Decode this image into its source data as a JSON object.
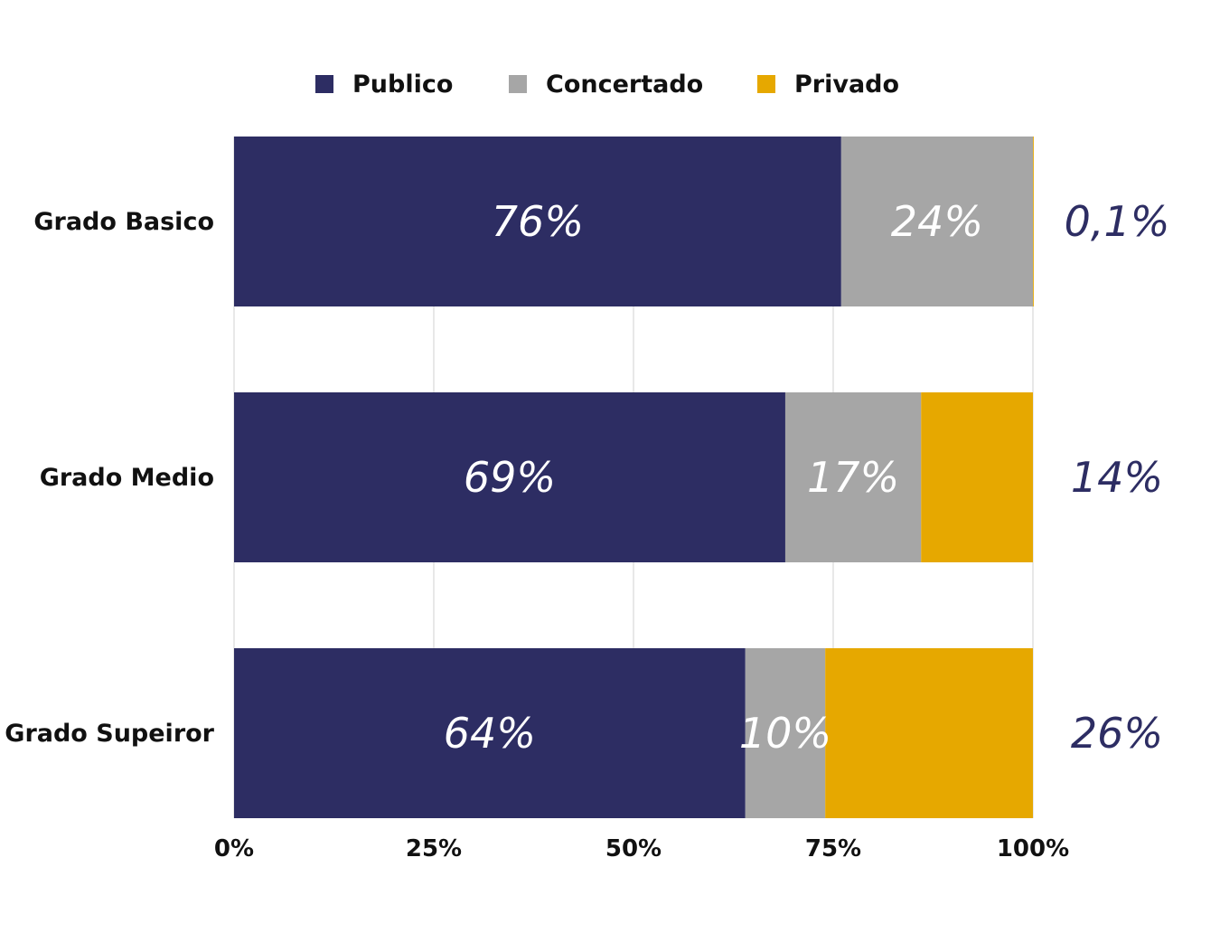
{
  "chart_data": {
    "type": "bar",
    "orientation": "horizontal",
    "stacked": true,
    "categories": [
      "Grado Basico",
      "Grado Medio",
      "Grado Supeiror"
    ],
    "series": [
      {
        "name": "Publico",
        "values": [
          76,
          69,
          64
        ],
        "labels": [
          "76%",
          "69%",
          "64%"
        ]
      },
      {
        "name": "Concertado",
        "values": [
          24,
          17,
          10
        ],
        "labels": [
          "24%",
          "17%",
          "10%"
        ]
      },
      {
        "name": "Privado",
        "values": [
          0.1,
          14,
          26
        ],
        "labels": [
          "0,1%",
          "14%",
          "26%"
        ]
      }
    ],
    "xlim": [
      0,
      100
    ],
    "xticks": [
      "0%",
      "25%",
      "50%",
      "75%",
      "100%"
    ],
    "grid": true,
    "legend": "top",
    "title": "",
    "xlabel": "",
    "ylabel": "",
    "colors": {
      "Publico": "#2d2d63",
      "Concertado": "#a6a6a6",
      "Privado": "#e6a800",
      "gridline": "#d0d0d0",
      "outer_label": "#2d2d63"
    }
  }
}
